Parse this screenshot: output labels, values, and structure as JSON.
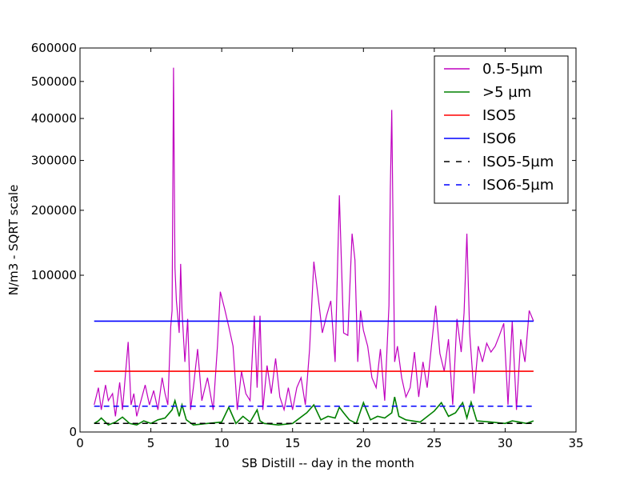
{
  "chart_data": {
    "type": "line",
    "title": "",
    "xlabel": "SB Distill -- day in the month",
    "ylabel": "N/m3 - SQRT scale",
    "xlim": [
      0,
      35
    ],
    "ylim": [
      0,
      600000
    ],
    "y_scale": "sqrt",
    "grid": false,
    "legend_position": "top-right",
    "x_ticks": [
      0,
      5,
      10,
      15,
      20,
      25,
      30,
      35
    ],
    "y_ticks": [
      0,
      100000,
      200000,
      300000,
      400000,
      500000,
      600000
    ],
    "series": [
      {
        "name": "0.5-5µm",
        "color": "#bf00bf",
        "style": "solid",
        "x": [
          1.0,
          1.3,
          1.5,
          1.8,
          2.0,
          2.3,
          2.5,
          2.8,
          3.0,
          3.2,
          3.4,
          3.6,
          3.8,
          4.0,
          4.3,
          4.6,
          4.9,
          5.2,
          5.5,
          5.8,
          6.0,
          6.2,
          6.4,
          6.5,
          6.6,
          6.7,
          6.8,
          7.0,
          7.1,
          7.2,
          7.4,
          7.6,
          7.8,
          8.0,
          8.3,
          8.6,
          9.0,
          9.4,
          9.7,
          9.9,
          10.2,
          10.5,
          10.8,
          11.1,
          11.4,
          11.7,
          12.0,
          12.3,
          12.5,
          12.7,
          12.9,
          13.2,
          13.5,
          13.8,
          14.1,
          14.4,
          14.7,
          15.0,
          15.3,
          15.6,
          15.9,
          16.2,
          16.5,
          16.8,
          17.1,
          17.4,
          17.7,
          18.0,
          18.3,
          18.6,
          18.9,
          19.2,
          19.4,
          19.6,
          19.8,
          20.0,
          20.3,
          20.6,
          20.9,
          21.2,
          21.5,
          21.8,
          21.9,
          22.0,
          22.1,
          22.2,
          22.4,
          22.7,
          23.0,
          23.3,
          23.6,
          23.9,
          24.2,
          24.5,
          24.8,
          25.1,
          25.4,
          25.7,
          26.0,
          26.3,
          26.6,
          26.9,
          27.1,
          27.3,
          27.5,
          27.8,
          28.1,
          28.4,
          28.7,
          29.0,
          29.3,
          29.6,
          29.9,
          30.2,
          30.5,
          30.8,
          31.1,
          31.4,
          31.7,
          32.0
        ],
        "values": [
          3000,
          8000,
          2000,
          9000,
          4000,
          6000,
          1000,
          10000,
          2000,
          13000,
          33000,
          3000,
          6000,
          1000,
          4000,
          9000,
          3000,
          7000,
          2000,
          12000,
          6000,
          3000,
          45000,
          60000,
          540000,
          110000,
          70000,
          40000,
          115000,
          60000,
          20000,
          52000,
          2000,
          8000,
          28000,
          4000,
          12000,
          2000,
          30000,
          80000,
          62000,
          45000,
          30000,
          2000,
          15000,
          6000,
          4000,
          55000,
          8000,
          55000,
          2000,
          18000,
          6000,
          22000,
          5000,
          2000,
          8000,
          2000,
          8000,
          12000,
          3000,
          28000,
          118000,
          75000,
          40000,
          55000,
          70000,
          20000,
          228000,
          40000,
          38000,
          160000,
          120000,
          20000,
          60000,
          42000,
          30000,
          12000,
          8000,
          28000,
          4000,
          65000,
          240000,
          422000,
          150000,
          20000,
          30000,
          12000,
          5000,
          8000,
          26000,
          5000,
          20000,
          8000,
          30000,
          65000,
          25000,
          15000,
          35000,
          3000,
          52000,
          26000,
          58000,
          160000,
          40000,
          6000,
          30000,
          20000,
          32000,
          26000,
          30000,
          38000,
          48000,
          3000,
          50000,
          2000,
          35000,
          20000,
          60000,
          50000
        ]
      },
      {
        "name": ">5 µm",
        "color": "#008000",
        "style": "solid",
        "x": [
          1.0,
          1.3,
          1.5,
          2.0,
          2.5,
          3.0,
          3.5,
          4.0,
          4.5,
          5.0,
          5.5,
          6.0,
          6.5,
          6.7,
          7.0,
          7.2,
          7.5,
          8.0,
          9.0,
          10.0,
          10.5,
          11.0,
          11.5,
          12.0,
          12.5,
          12.7,
          13.0,
          14.0,
          15.0,
          16.0,
          16.5,
          17.0,
          17.5,
          18.0,
          18.3,
          18.6,
          19.0,
          19.5,
          20.0,
          20.5,
          21.0,
          21.5,
          22.0,
          22.2,
          22.5,
          23.0,
          24.0,
          25.0,
          25.5,
          26.0,
          26.5,
          27.0,
          27.3,
          27.6,
          28.0,
          29.0,
          30.0,
          30.5,
          31.0,
          31.5,
          32.0
        ],
        "values": [
          300,
          500,
          800,
          200,
          400,
          900,
          300,
          200,
          500,
          300,
          600,
          800,
          2000,
          4000,
          1000,
          3000,
          600,
          200,
          300,
          400,
          2500,
          300,
          1000,
          400,
          2000,
          500,
          300,
          200,
          300,
          1500,
          3000,
          600,
          1000,
          800,
          2500,
          1500,
          600,
          300,
          3500,
          600,
          1000,
          800,
          1500,
          5000,
          1000,
          600,
          400,
          1800,
          3500,
          1000,
          1500,
          3500,
          800,
          3600,
          500,
          400,
          300,
          500,
          400,
          300,
          500
        ]
      },
      {
        "name": "ISO5",
        "color": "#ff0000",
        "style": "solid",
        "x": [
          1,
          32
        ],
        "values": [
          15000,
          15000
        ]
      },
      {
        "name": "ISO6",
        "color": "#0000ff",
        "style": "solid",
        "x": [
          1,
          32
        ],
        "values": [
          50000,
          50000
        ]
      },
      {
        "name": "ISO5-5µm",
        "color": "#000000",
        "style": "dashed",
        "x": [
          1,
          32
        ],
        "values": [
          300,
          300
        ]
      },
      {
        "name": "ISO6-5µm",
        "color": "#0000ff",
        "style": "dashed",
        "x": [
          1,
          32
        ],
        "values": [
          2700,
          2700
        ]
      }
    ]
  }
}
